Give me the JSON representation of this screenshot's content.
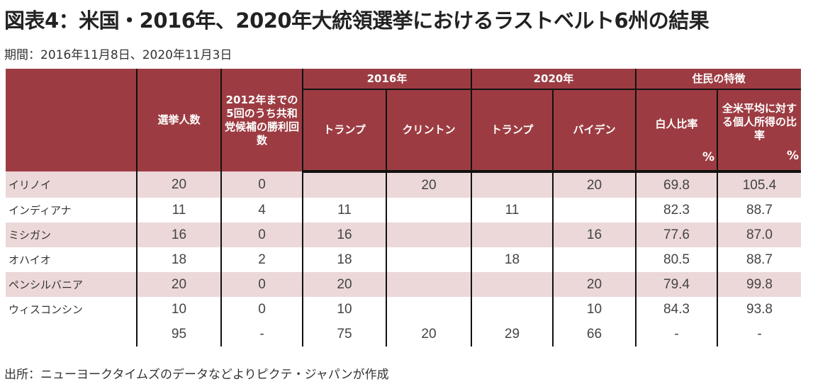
{
  "title": "図表4：米国・2016年、2020年大統領選挙におけるラストベルト6州の結果",
  "subtitle": "期間：2016年11月8日、2020年11月3日",
  "source": "出所：ニューヨークタイムズのデータなどよりピクテ・ジャパンが作成",
  "colors": {
    "header": "#9c3c42",
    "band": "#ecd8d9"
  },
  "headers": {
    "electors": "選挙人数",
    "rep_wins": "2012年までの5回のうち共和党候補の勝利回数",
    "y2016": "2016年",
    "y2020": "2020年",
    "residents": "住民の特徴",
    "trump2016": "トランプ",
    "clinton": "クリントン",
    "trump2020": "トランプ",
    "biden": "バイデン",
    "white": "白人比率",
    "income": "全米平均に対する個人所得の比率",
    "pct1": "%",
    "pct2": "%"
  },
  "rows": [
    {
      "state": "イリノイ",
      "electors": "20",
      "rep": "0",
      "t16": "",
      "c16": "20",
      "t20": "",
      "b20": "20",
      "white": "69.8",
      "income": "105.4"
    },
    {
      "state": "インディアナ",
      "electors": "11",
      "rep": "4",
      "t16": "11",
      "c16": "",
      "t20": "11",
      "b20": "",
      "white": "82.3",
      "income": "88.7"
    },
    {
      "state": "ミシガン",
      "electors": "16",
      "rep": "0",
      "t16": "16",
      "c16": "",
      "t20": "",
      "b20": "16",
      "white": "77.6",
      "income": "87.0"
    },
    {
      "state": "オハイオ",
      "electors": "18",
      "rep": "2",
      "t16": "18",
      "c16": "",
      "t20": "18",
      "b20": "",
      "white": "80.5",
      "income": "88.7"
    },
    {
      "state": "ペンシルバニア",
      "electors": "20",
      "rep": "0",
      "t16": "20",
      "c16": "",
      "t20": "",
      "b20": "20",
      "white": "79.4",
      "income": "99.8"
    },
    {
      "state": "ウィスコンシン",
      "electors": "10",
      "rep": "0",
      "t16": "10",
      "c16": "",
      "t20": "",
      "b20": "10",
      "white": "84.3",
      "income": "93.8"
    }
  ],
  "total": {
    "state": "",
    "electors": "95",
    "rep": "-",
    "t16": "75",
    "c16": "20",
    "t20": "29",
    "b20": "66",
    "white": "-",
    "income": "-"
  }
}
